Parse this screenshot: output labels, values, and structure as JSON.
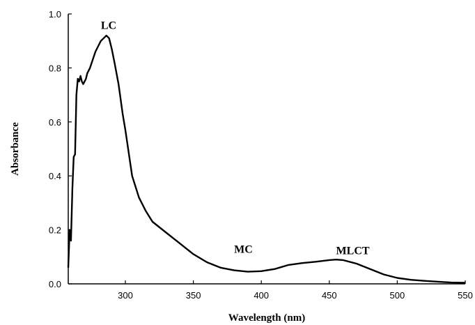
{
  "chart_data": {
    "type": "line",
    "title": "",
    "xlabel": "Wavelength (nm)",
    "ylabel": "Absorbance",
    "xlim": [
      258,
      550
    ],
    "ylim": [
      0.0,
      1.0
    ],
    "xticks": [
      300,
      350,
      400,
      450,
      500,
      550
    ],
    "yticks": [
      0.0,
      0.2,
      0.4,
      0.6,
      0.8,
      1.0
    ],
    "ytick_labels": [
      "0.0",
      "0.2",
      "0.4",
      "0.6",
      "0.8",
      "1.0"
    ],
    "grid": false,
    "line_color": "#000000",
    "series": [
      {
        "x": [
          258,
          259,
          260,
          261,
          262,
          263,
          264,
          265,
          266,
          267,
          268,
          269,
          270,
          271,
          272,
          274,
          276,
          278,
          280,
          282,
          284,
          286,
          288,
          290,
          292,
          295,
          298,
          300,
          305,
          310,
          315,
          320,
          330,
          340,
          350,
          360,
          370,
          380,
          390,
          400,
          410,
          420,
          430,
          440,
          450,
          455,
          460,
          470,
          480,
          490,
          500,
          510,
          520,
          530,
          540,
          550
        ],
        "y": [
          0.06,
          0.2,
          0.16,
          0.35,
          0.47,
          0.48,
          0.7,
          0.76,
          0.75,
          0.77,
          0.75,
          0.74,
          0.75,
          0.76,
          0.78,
          0.8,
          0.83,
          0.86,
          0.88,
          0.9,
          0.91,
          0.92,
          0.91,
          0.87,
          0.82,
          0.74,
          0.63,
          0.57,
          0.4,
          0.32,
          0.27,
          0.23,
          0.19,
          0.15,
          0.11,
          0.08,
          0.06,
          0.05,
          0.045,
          0.047,
          0.055,
          0.07,
          0.077,
          0.082,
          0.088,
          0.09,
          0.088,
          0.075,
          0.055,
          0.035,
          0.022,
          0.015,
          0.011,
          0.008,
          0.005,
          0.004
        ]
      }
    ],
    "annotations": [
      {
        "text": "LC",
        "x": 282,
        "y": 0.945
      },
      {
        "text": "MC",
        "x": 380,
        "y": 0.115
      },
      {
        "text": "MLCT",
        "x": 455,
        "y": 0.11
      }
    ]
  }
}
